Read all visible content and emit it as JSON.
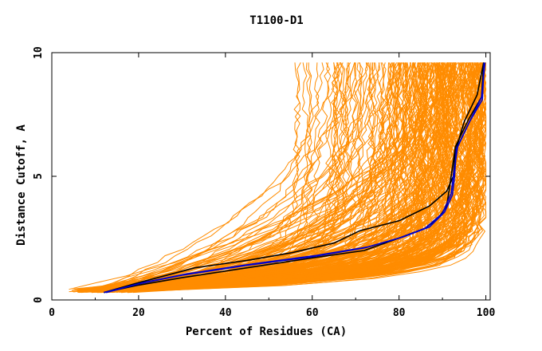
{
  "chart_data": {
    "type": "line",
    "title": "T1100-D1",
    "xlabel": "Percent of Residues (CA)",
    "ylabel": "Distance Cutoff, A",
    "xlim": [
      0,
      101
    ],
    "ylim": [
      0,
      10
    ],
    "xticks": [
      "0",
      "20",
      "40",
      "60",
      "80",
      "100"
    ],
    "yticks": [
      "0",
      "5",
      "10"
    ],
    "colors": {
      "background_models": "#ff8c00",
      "black_model": "#000000",
      "blue_model": "#0000cc",
      "axes": "#000000"
    },
    "series": [
      {
        "color": "#000000",
        "x": [
          12,
          20,
          33,
          45,
          55,
          65,
          71,
          80,
          87,
          91,
          92.5,
          93,
          95,
          98,
          99.5
        ],
        "y": [
          0.3,
          0.7,
          1.3,
          1.6,
          1.9,
          2.3,
          2.8,
          3.2,
          3.8,
          4.4,
          5.0,
          6.0,
          7.2,
          8.3,
          9.6
        ]
      },
      {
        "color": "#000000",
        "x": [
          12,
          20,
          30,
          45,
          60,
          72,
          80,
          86,
          89,
          91,
          92,
          93,
          96,
          99,
          99.5
        ],
        "y": [
          0.3,
          0.6,
          0.9,
          1.3,
          1.7,
          2.0,
          2.5,
          2.9,
          3.3,
          3.8,
          5.0,
          6.2,
          7.3,
          8.2,
          9.6
        ]
      },
      {
        "color": "#0000cc",
        "x": [
          12,
          20,
          30,
          45,
          60,
          72,
          80,
          86,
          90,
          92,
          92.5,
          93.5,
          96.5,
          99,
          99.8
        ],
        "y": [
          0.3,
          0.65,
          1.0,
          1.4,
          1.75,
          2.1,
          2.5,
          2.9,
          3.5,
          4.3,
          5.0,
          6.2,
          7.3,
          8.2,
          9.6
        ]
      },
      {
        "color": "#0000cc",
        "x": [
          12.5,
          21,
          31,
          46,
          61,
          73,
          81,
          87,
          90.5,
          92.3,
          92.8,
          93.2,
          96.2,
          99.2,
          99.6
        ],
        "y": [
          0.3,
          0.7,
          1.05,
          1.45,
          1.8,
          2.15,
          2.55,
          2.95,
          3.55,
          4.25,
          5.0,
          6.1,
          7.2,
          8.1,
          9.6
        ]
      }
    ]
  }
}
